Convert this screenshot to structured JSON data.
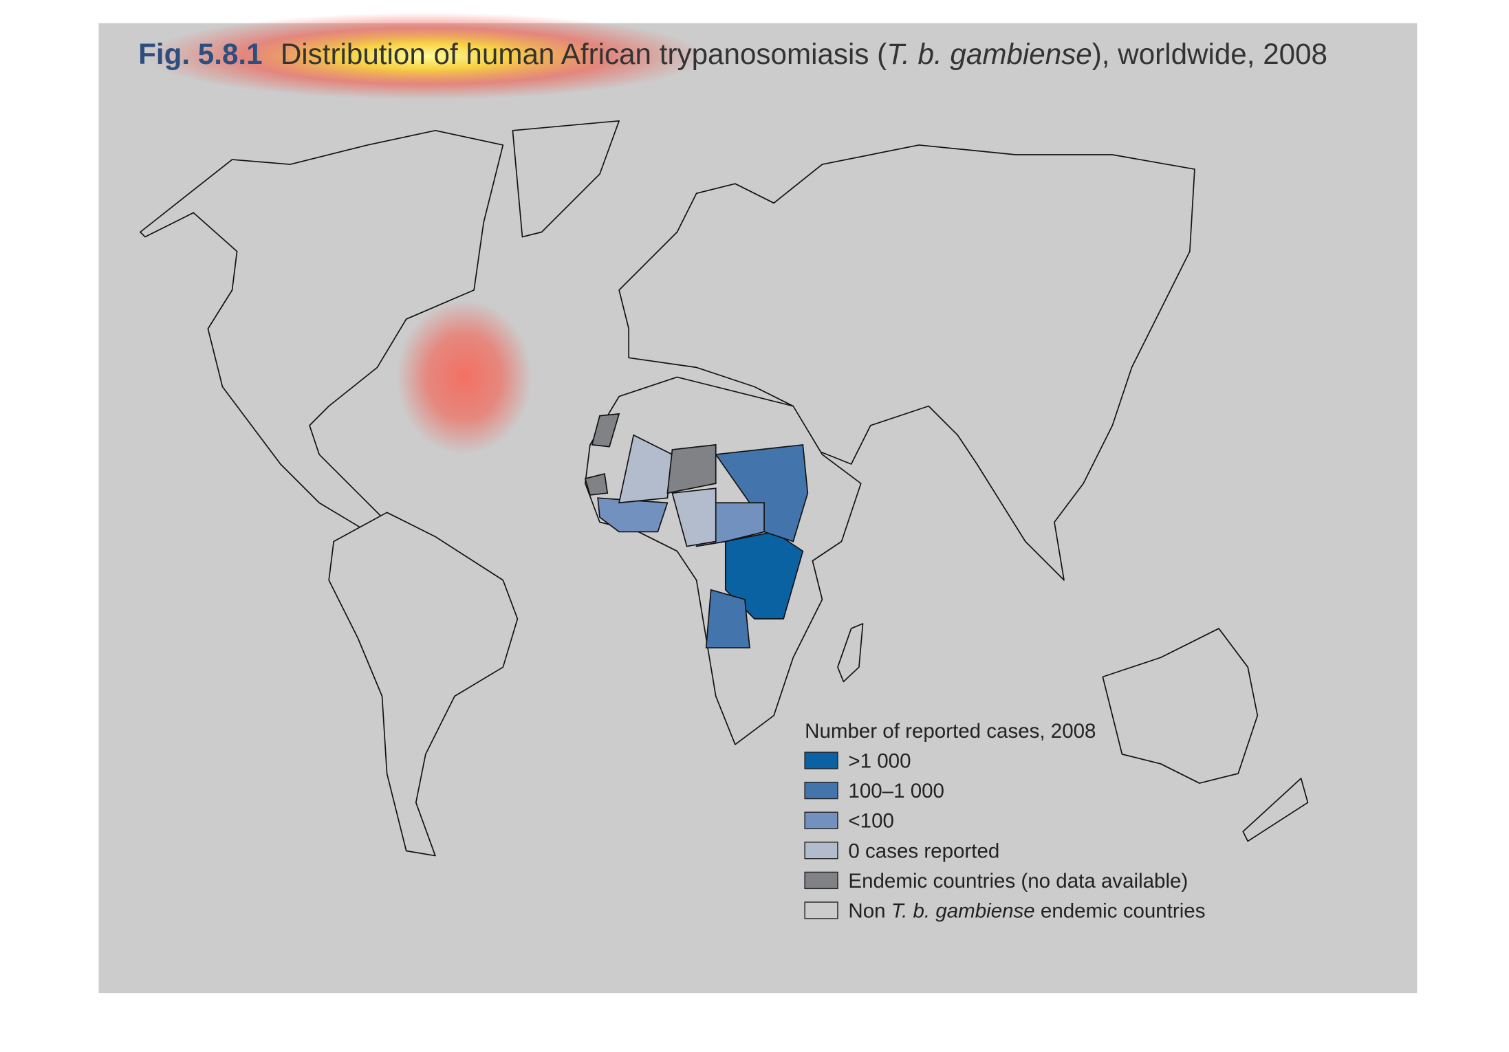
{
  "figure": {
    "number": "Fig. 5.8.1",
    "title": [
      "Distribution of human African trypanosomiasis (",
      "T. b. gambiense",
      "), worldwide, 2008"
    ]
  },
  "legend": {
    "title": "Number of reported cases, 2008",
    "items": [
      {
        "label": ">1 000",
        "color": "#0a62a3"
      },
      {
        "label": "100–1 000",
        "color": "#4374ab"
      },
      {
        "label": "<100",
        "color": "#7391bf"
      },
      {
        "label": "0 cases reported",
        "color": "#b3bccc"
      },
      {
        "label": "Endemic countries (no data available)",
        "color": "#808285"
      },
      {
        "label": [
          "Non ",
          "T. b. gambiense",
          " endemic countries"
        ],
        "color": "#cccccc"
      }
    ]
  }
}
